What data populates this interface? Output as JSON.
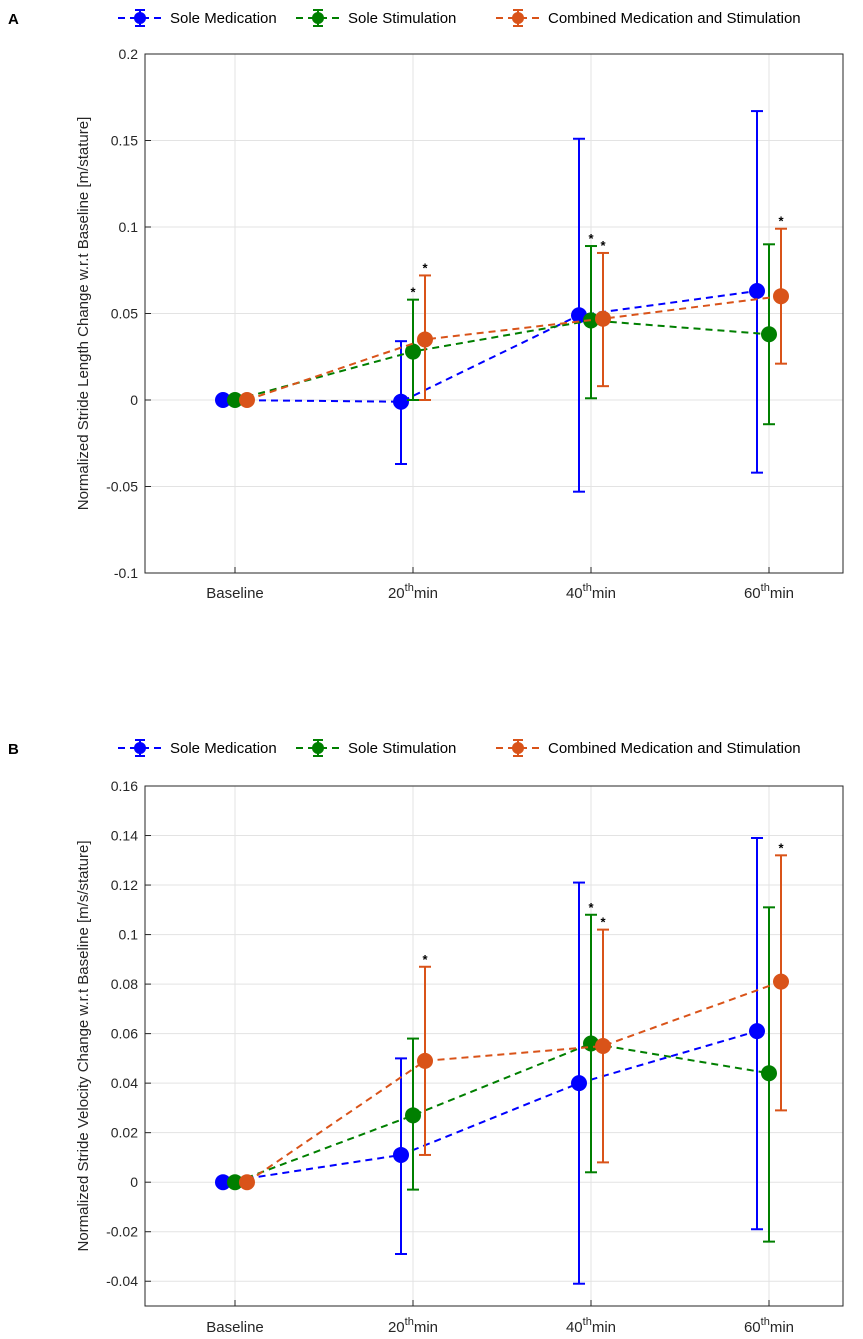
{
  "series_legend": [
    {
      "name": "Sole Medication",
      "color": "#0000ff"
    },
    {
      "name": "Sole Stimulation",
      "color": "#007f00"
    },
    {
      "name": "Combined Medication and Stimulation",
      "color": "#d95319"
    }
  ],
  "chart_data": [
    {
      "panel_label": "A",
      "type": "line",
      "errorbars": true,
      "categories": [
        "Baseline",
        "20th min",
        "40th min",
        "60th min"
      ],
      "tick_labels": [
        {
          "pre": "Baseline",
          "sup": "",
          "post": ""
        },
        {
          "pre": "20",
          "sup": "th",
          "post": "min"
        },
        {
          "pre": "40",
          "sup": "th",
          "post": "min"
        },
        {
          "pre": "60",
          "sup": "th",
          "post": "min"
        }
      ],
      "ylabel": "Normalized Stride Length Change w.r.t Baseline [m/stature]",
      "xlabel": "",
      "ylim": [
        -0.1,
        0.2
      ],
      "yticks": [
        -0.1,
        -0.05,
        0,
        0.05,
        0.1,
        0.15,
        0.2
      ],
      "ytick_labels": [
        "-0.1",
        "-0.05",
        "0",
        "0.05",
        "0.1",
        "0.15",
        "0.2"
      ],
      "grid": true,
      "legend_position": "top",
      "series": [
        {
          "name": "Sole Medication",
          "color": "#0000ff",
          "values": [
            0,
            -0.001,
            0.049,
            0.063
          ],
          "lower": [
            0,
            -0.037,
            -0.053,
            -0.042
          ],
          "upper": [
            0,
            0.034,
            0.151,
            0.167
          ],
          "significance": [
            "",
            "",
            "",
            ""
          ]
        },
        {
          "name": "Sole Stimulation",
          "color": "#007f00",
          "values": [
            0,
            0.028,
            0.046,
            0.038
          ],
          "lower": [
            0,
            0.0,
            0.001,
            -0.014
          ],
          "upper": [
            0,
            0.058,
            0.089,
            0.09
          ],
          "significance": [
            "",
            "*",
            "*",
            ""
          ]
        },
        {
          "name": "Combined Medication and Stimulation",
          "color": "#d95319",
          "values": [
            0,
            0.035,
            0.047,
            0.06
          ],
          "lower": [
            0,
            0.0,
            0.008,
            0.021
          ],
          "upper": [
            0,
            0.072,
            0.085,
            0.099
          ],
          "significance": [
            "",
            "*",
            "*",
            "*"
          ]
        }
      ]
    },
    {
      "panel_label": "B",
      "type": "line",
      "errorbars": true,
      "categories": [
        "Baseline",
        "20th min",
        "40th min",
        "60th min"
      ],
      "tick_labels": [
        {
          "pre": "Baseline",
          "sup": "",
          "post": ""
        },
        {
          "pre": "20",
          "sup": "th",
          "post": "min"
        },
        {
          "pre": "40",
          "sup": "th",
          "post": "min"
        },
        {
          "pre": "60",
          "sup": "th",
          "post": "min"
        }
      ],
      "ylabel": "Normalized Stride Velocity Change w.r.t Baseline [m/s/stature]",
      "xlabel": "",
      "ylim": [
        -0.05,
        0.16
      ],
      "yticks": [
        -0.04,
        -0.02,
        0,
        0.02,
        0.04,
        0.06,
        0.08,
        0.1,
        0.12,
        0.14,
        0.16
      ],
      "ytick_labels": [
        "-0.04",
        "-0.02",
        "0",
        "0.02",
        "0.04",
        "0.06",
        "0.08",
        "0.1",
        "0.12",
        "0.14",
        "0.16"
      ],
      "grid": true,
      "legend_position": "top",
      "series": [
        {
          "name": "Sole Medication",
          "color": "#0000ff",
          "values": [
            0,
            0.011,
            0.04,
            0.061
          ],
          "lower": [
            0,
            -0.029,
            -0.041,
            -0.019
          ],
          "upper": [
            0,
            0.05,
            0.121,
            0.139
          ],
          "significance": [
            "",
            "",
            "",
            ""
          ]
        },
        {
          "name": "Sole Stimulation",
          "color": "#007f00",
          "values": [
            0,
            0.027,
            0.056,
            0.044
          ],
          "lower": [
            0,
            -0.003,
            0.004,
            -0.024
          ],
          "upper": [
            0,
            0.058,
            0.108,
            0.111
          ],
          "significance": [
            "",
            "",
            "*",
            ""
          ]
        },
        {
          "name": "Combined Medication and Stimulation",
          "color": "#d95319",
          "values": [
            0,
            0.049,
            0.055,
            0.081
          ],
          "lower": [
            0,
            0.011,
            0.008,
            0.029
          ],
          "upper": [
            0,
            0.087,
            0.102,
            0.132
          ],
          "significance": [
            "",
            "*",
            "*",
            "*"
          ]
        }
      ]
    }
  ]
}
